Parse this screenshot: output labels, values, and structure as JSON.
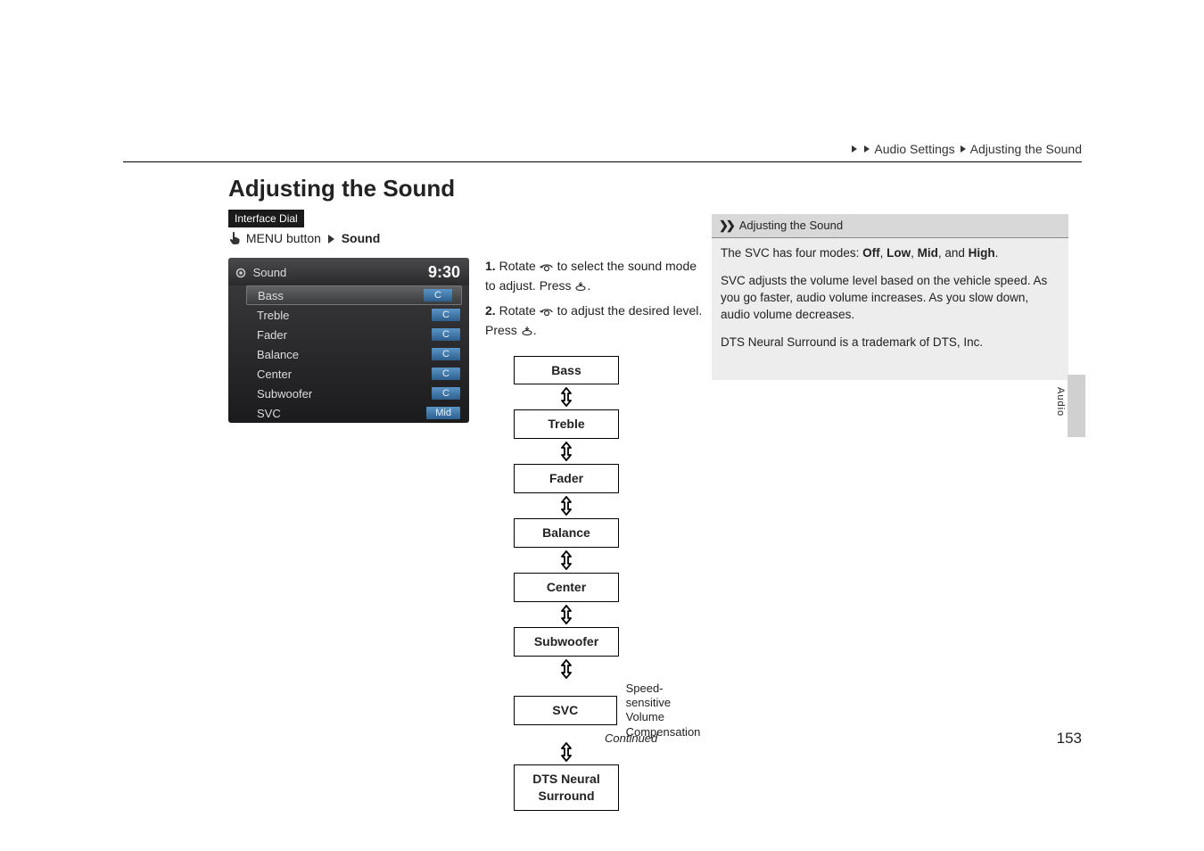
{
  "breadcrumb": {
    "s1": "",
    "s2": "Audio Settings",
    "s3": "Adjusting the Sound"
  },
  "heading": "Adjusting the Sound",
  "tag": "Interface Dial",
  "menu_line": {
    "button_text": "MENU button",
    "target": "Sound"
  },
  "screenshot": {
    "title": "Sound",
    "time": "9:30",
    "rows": [
      {
        "label": "Bass",
        "value": "C",
        "selected": true
      },
      {
        "label": "Treble",
        "value": "C",
        "selected": false
      },
      {
        "label": "Fader",
        "value": "C",
        "selected": false
      },
      {
        "label": "Balance",
        "value": "C",
        "selected": false
      },
      {
        "label": "Center",
        "value": "C",
        "selected": false
      },
      {
        "label": "Subwoofer",
        "value": "C",
        "selected": false
      },
      {
        "label": "SVC",
        "value": "Mid",
        "selected": false
      }
    ]
  },
  "steps": {
    "s1_a": "1.",
    "s1_b": "Rotate ",
    "s1_c": " to select the sound mode to adjust. Press ",
    "s1_d": ".",
    "s2_a": "2.",
    "s2_b": "Rotate ",
    "s2_c": " to adjust the desired level. Press ",
    "s2_d": "."
  },
  "flow": {
    "items": [
      "Bass",
      "Treble",
      "Fader",
      "Balance",
      "Center",
      "Subwoofer",
      "SVC",
      "DTS Neural Surround"
    ],
    "svc_label": "Speed-sensitive\nVolume\nCompensation"
  },
  "sidebar": {
    "head": "Adjusting the Sound",
    "p1_a": "The SVC has four modes: ",
    "p1_b": "Off",
    "p1_c": ", ",
    "p1_d": "Low",
    "p1_e": ", ",
    "p1_f": "Mid",
    "p1_g": ", and ",
    "p1_h": "High",
    "p1_i": ".",
    "p2": "SVC adjusts the volume level based on the vehicle speed. As you go faster, audio volume increases. As you slow down, audio volume decreases.",
    "p3": "DTS Neural Surround is a trademark of DTS, Inc."
  },
  "thumb_label": "Audio",
  "continued": "Continued",
  "page_number": "153",
  "colors": {
    "accent_blue": "#3a7db5",
    "box_border": "#000000",
    "sidebar_head": "#d8d8d8",
    "sidebar_body": "#ededed"
  }
}
